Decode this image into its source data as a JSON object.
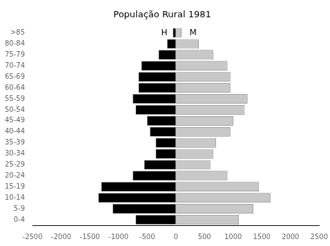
{
  "chart_data": {
    "type": "bar",
    "orientation": "horizontal",
    "stacked": true,
    "grid": false,
    "title": "População Rural 1981",
    "categories": [
      "0-4",
      "5-9",
      "10-14",
      "15-19",
      "20-24",
      "25-29",
      "30-34",
      "35-39",
      "40-44",
      "45-49",
      "50-54",
      "55-59",
      "60-64",
      "65-69",
      "70-74",
      "75-79",
      "80-84",
      ">85"
    ],
    "series": [
      {
        "color": "#000000",
        "values": [
          -700,
          -1100,
          -1350,
          -1300,
          -750,
          -550,
          -350,
          -350,
          -450,
          -500,
          -700,
          -750,
          -650,
          -650,
          -600,
          -300,
          -150,
          -50
        ]
      },
      {
        "color": "#c8c8c8",
        "values": [
          1100,
          1350,
          1650,
          1450,
          900,
          600,
          650,
          700,
          950,
          1000,
          1200,
          1250,
          950,
          950,
          900,
          650,
          400,
          100
        ]
      }
    ],
    "annotations": [
      {
        "text": "H",
        "x": -200,
        "y": ">85"
      },
      {
        "text": "M",
        "x": 300,
        "y": ">85"
      }
    ],
    "xlim": [
      -2500,
      2500
    ],
    "xticks": [
      -2500,
      -2000,
      -1500,
      -1000,
      -500,
      0,
      500,
      1000,
      1500,
      2000,
      2500
    ]
  }
}
